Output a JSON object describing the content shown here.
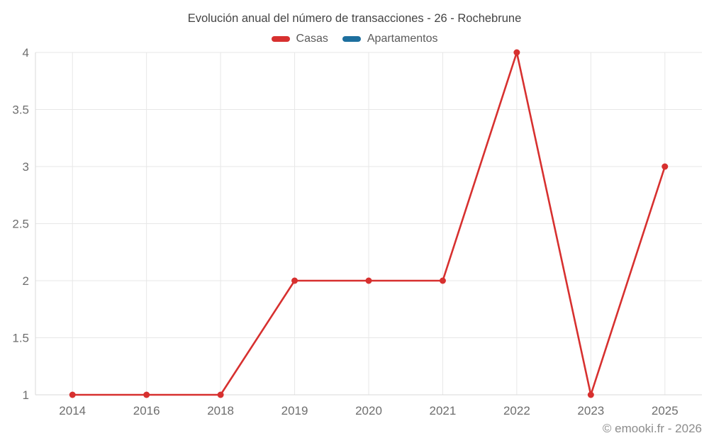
{
  "footer": "© emooki.fr - 2026",
  "chart_data": {
    "type": "line",
    "title": "Evolución anual del número de transacciones - 26 - Rochebrune",
    "categories": [
      "2014",
      "2016",
      "2018",
      "2019",
      "2020",
      "2021",
      "2022",
      "2023",
      "2025"
    ],
    "series": [
      {
        "name": "Casas",
        "color": "#d7302f",
        "values": [
          1,
          1,
          1,
          2,
          2,
          2,
          4,
          1,
          3
        ]
      },
      {
        "name": "Apartamentos",
        "color": "#1d6f9e",
        "values": []
      }
    ],
    "xlabel": "",
    "ylabel": "",
    "ylim": [
      1,
      4
    ],
    "y_ticks": [
      1,
      1.5,
      2,
      2.5,
      3,
      3.5,
      4
    ],
    "grid": true,
    "legend_position": "top",
    "colors": {
      "grid": "#e7e7e7",
      "axis": "#d9d9d9",
      "tick_label": "#6e6e6e",
      "title": "#444444",
      "footer": "#8c8c8c"
    }
  }
}
